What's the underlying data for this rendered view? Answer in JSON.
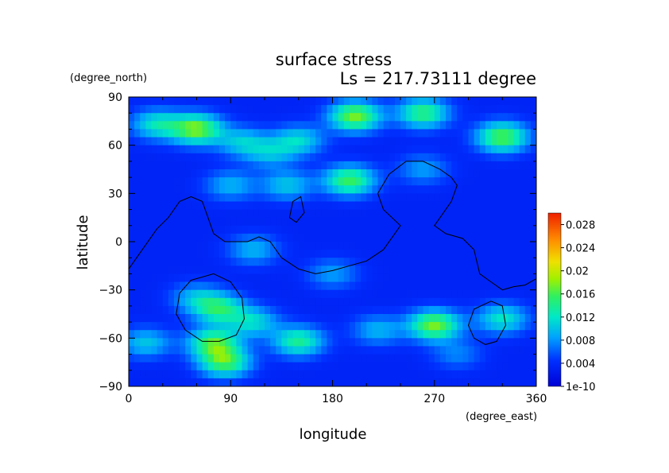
{
  "chart_data": {
    "type": "heatmap",
    "title": "surface stress",
    "subtitle": "Ls = 217.73111 degree",
    "xlabel": "longitude",
    "ylabel": "latitude",
    "x_unit": "(degree_east)",
    "y_unit": "(degree_north)",
    "xlim": [
      0,
      360
    ],
    "ylim": [
      -90,
      90
    ],
    "x_ticks": [
      "0",
      "90",
      "180",
      "270",
      "360"
    ],
    "y_ticks": [
      "90",
      "60",
      "30",
      "0",
      "−30",
      "−60",
      "−90"
    ],
    "x_tick_values": [
      0,
      90,
      180,
      270,
      360
    ],
    "y_tick_values": [
      90,
      60,
      30,
      0,
      -30,
      -60,
      -90
    ],
    "colorbar": {
      "labels": [
        "0.028",
        "0.024",
        "0.02",
        "0.016",
        "0.012",
        "0.008",
        "0.004",
        "1e-10"
      ],
      "values": [
        0.028,
        0.024,
        0.02,
        0.016,
        0.012,
        0.008,
        0.004,
        0.0
      ],
      "range": [
        0,
        0.03
      ]
    },
    "background_value": 0.003,
    "hotspots": [
      {
        "lon": 60,
        "lat": 70,
        "value": 0.018
      },
      {
        "lon": 25,
        "lat": 73,
        "value": 0.012
      },
      {
        "lon": 100,
        "lat": 62,
        "value": 0.01
      },
      {
        "lon": 150,
        "lat": 63,
        "value": 0.011
      },
      {
        "lon": 200,
        "lat": 78,
        "value": 0.018
      },
      {
        "lon": 260,
        "lat": 80,
        "value": 0.015
      },
      {
        "lon": 330,
        "lat": 65,
        "value": 0.017
      },
      {
        "lon": 125,
        "lat": 55,
        "value": 0.009
      },
      {
        "lon": 195,
        "lat": 38,
        "value": 0.016
      },
      {
        "lon": 140,
        "lat": 35,
        "value": 0.01
      },
      {
        "lon": 90,
        "lat": 35,
        "value": 0.009
      },
      {
        "lon": 260,
        "lat": 45,
        "value": 0.008
      },
      {
        "lon": 110,
        "lat": -5,
        "value": 0.009
      },
      {
        "lon": 180,
        "lat": -20,
        "value": 0.008
      },
      {
        "lon": 60,
        "lat": -35,
        "value": 0.009
      },
      {
        "lon": 80,
        "lat": -42,
        "value": 0.014
      },
      {
        "lon": 110,
        "lat": -50,
        "value": 0.011
      },
      {
        "lon": 150,
        "lat": -62,
        "value": 0.014
      },
      {
        "lon": 220,
        "lat": -55,
        "value": 0.009
      },
      {
        "lon": 270,
        "lat": -52,
        "value": 0.018
      },
      {
        "lon": 330,
        "lat": -48,
        "value": 0.012
      },
      {
        "lon": 75,
        "lat": -63,
        "value": 0.016
      },
      {
        "lon": 15,
        "lat": -63,
        "value": 0.01
      },
      {
        "lon": 85,
        "lat": -75,
        "value": 0.016
      },
      {
        "lon": 290,
        "lat": -70,
        "value": 0.007
      }
    ],
    "contours": [
      {
        "name": "coastline-west",
        "points": [
          [
            0,
            -17
          ],
          [
            12,
            -5
          ],
          [
            25,
            8
          ],
          [
            35,
            15
          ],
          [
            45,
            25
          ],
          [
            55,
            28
          ],
          [
            65,
            25
          ],
          [
            70,
            15
          ],
          [
            75,
            5
          ],
          [
            85,
            0
          ],
          [
            95,
            0
          ],
          [
            105,
            0
          ],
          [
            115,
            3
          ],
          [
            125,
            0
          ],
          [
            135,
            -10
          ],
          [
            150,
            -17
          ],
          [
            165,
            -20
          ],
          [
            180,
            -18
          ],
          [
            195,
            -15
          ],
          [
            210,
            -12
          ],
          [
            225,
            -5
          ],
          [
            235,
            5
          ],
          [
            240,
            10
          ],
          [
            225,
            20
          ],
          [
            220,
            30
          ],
          [
            230,
            42
          ],
          [
            245,
            50
          ],
          [
            260,
            50
          ],
          [
            275,
            45
          ],
          [
            285,
            40
          ],
          [
            290,
            35
          ],
          [
            285,
            25
          ],
          [
            275,
            15
          ],
          [
            270,
            10
          ],
          [
            280,
            5
          ],
          [
            295,
            2
          ],
          [
            305,
            -5
          ],
          [
            310,
            -20
          ],
          [
            320,
            -25
          ],
          [
            330,
            -30
          ],
          [
            340,
            -28
          ],
          [
            350,
            -27
          ],
          [
            360,
            -23
          ]
        ]
      },
      {
        "name": "crater-west",
        "points": [
          [
            75,
            -20
          ],
          [
            90,
            -25
          ],
          [
            100,
            -35
          ],
          [
            102,
            -48
          ],
          [
            95,
            -58
          ],
          [
            80,
            -62
          ],
          [
            65,
            -62
          ],
          [
            50,
            -55
          ],
          [
            42,
            -45
          ],
          [
            45,
            -32
          ],
          [
            55,
            -24
          ],
          [
            75,
            -20
          ]
        ]
      },
      {
        "name": "crater-east",
        "points": [
          [
            320,
            -37
          ],
          [
            330,
            -40
          ],
          [
            333,
            -52
          ],
          [
            325,
            -62
          ],
          [
            315,
            -64
          ],
          [
            305,
            -60
          ],
          [
            300,
            -52
          ],
          [
            305,
            -42
          ],
          [
            320,
            -37
          ]
        ]
      },
      {
        "name": "island",
        "points": [
          [
            145,
            25
          ],
          [
            152,
            28
          ],
          [
            155,
            18
          ],
          [
            148,
            12
          ],
          [
            142,
            15
          ],
          [
            145,
            25
          ]
        ]
      }
    ]
  }
}
